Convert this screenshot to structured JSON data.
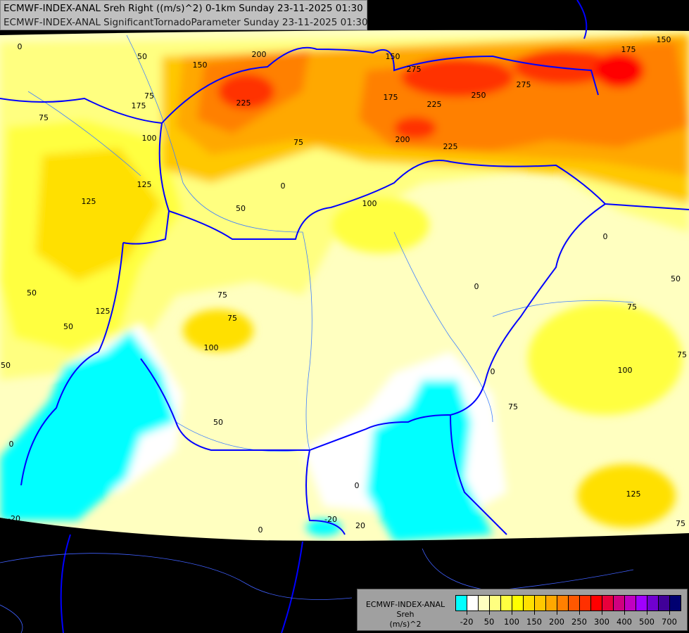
{
  "header": {
    "line1": "ECMWF-INDEX-ANAL Sreh Right ((m/s)^2) 0-1km Sunday 23-11-2025 01:30",
    "line2": "ECMWF-INDEX-ANAL SignificantTornadoParameter Sunday 23-11-2025 01:30"
  },
  "legend": {
    "model": "ECMWF-INDEX-ANAL",
    "parameter": "Sreh",
    "unit": "(m/s)^2",
    "colors": [
      "#00ffff",
      "#ffffff",
      "#ffffc0",
      "#ffff80",
      "#ffff40",
      "#ffff00",
      "#ffe000",
      "#ffc800",
      "#ffa800",
      "#ff8000",
      "#ff5800",
      "#ff3000",
      "#ff0000",
      "#e8003c",
      "#d00080",
      "#c000c0",
      "#a000ff",
      "#7000d0",
      "#400098",
      "#000070"
    ],
    "tick_labels": [
      "-20",
      "50",
      "100",
      "150",
      "200",
      "250",
      "300",
      "400",
      "500",
      "700"
    ]
  },
  "map": {
    "colors": {
      "background": "#000000",
      "border": "#0000ff",
      "river": "#4080ff",
      "contour": "#000000"
    },
    "contour_labels": [
      "0",
      "50",
      "75",
      "200",
      "150",
      "175",
      "225",
      "150",
      "275",
      "250",
      "275",
      "175",
      "150",
      "175",
      "225",
      "200",
      "225",
      "75",
      "0",
      "100",
      "125",
      "125",
      "100",
      "75",
      "0",
      "50",
      "50",
      "75",
      "125",
      "50",
      "75",
      "100",
      "50",
      "0",
      "50",
      "0",
      "0",
      "75",
      "50",
      "75",
      "100",
      "75",
      "125",
      "75",
      "0",
      "-20",
      "20",
      "-20",
      "0"
    ]
  }
}
